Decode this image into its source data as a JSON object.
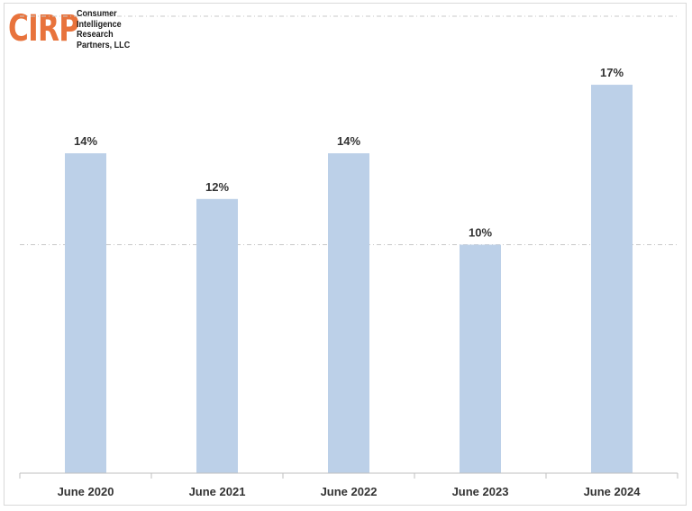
{
  "logo": {
    "mark": "CIRP",
    "lines": [
      "Consumer",
      "Intelligence",
      "Research",
      "Partners, LLC"
    ]
  },
  "colors": {
    "bar": "#bcd0e8",
    "logo": "#e8733c",
    "gridline": "#c8c8c8",
    "axis": "#bfbfbf",
    "text": "#333333"
  },
  "chart_data": {
    "type": "bar",
    "title": "",
    "xlabel": "",
    "ylabel": "",
    "categories": [
      "June 2020",
      "June 2021",
      "June 2022",
      "June 2023",
      "June 2024"
    ],
    "values": [
      14,
      12,
      14,
      10,
      17
    ],
    "data_labels": [
      "14%",
      "12%",
      "14%",
      "10%",
      "17%"
    ],
    "ylim": [
      0,
      20
    ],
    "gridlines_at": [
      10,
      20
    ],
    "grid": true,
    "legend": "none"
  }
}
